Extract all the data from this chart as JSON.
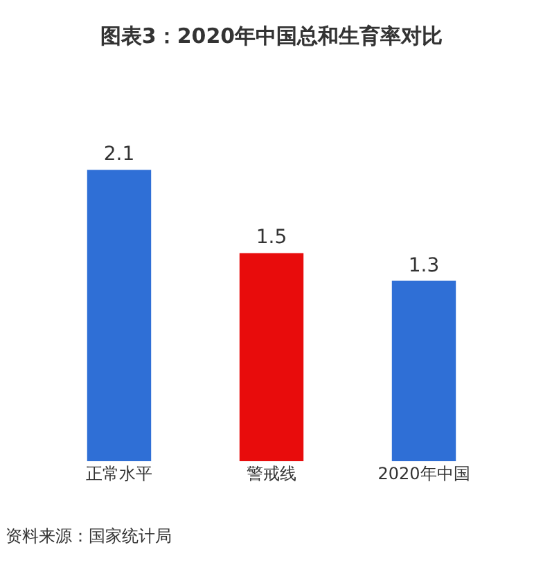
{
  "chart_data": {
    "type": "bar",
    "title": "图表3：2020年中国总和生育率对比",
    "categories": [
      "正常水平",
      "警戒线",
      "2020年中国"
    ],
    "values": [
      2.1,
      1.5,
      1.3
    ],
    "colors": [
      "#2f6fd6",
      "#e80c0c",
      "#2f6fd6"
    ],
    "data_labels": true,
    "legend": false,
    "annotations": [
      "资料来源：国家统计局"
    ]
  }
}
